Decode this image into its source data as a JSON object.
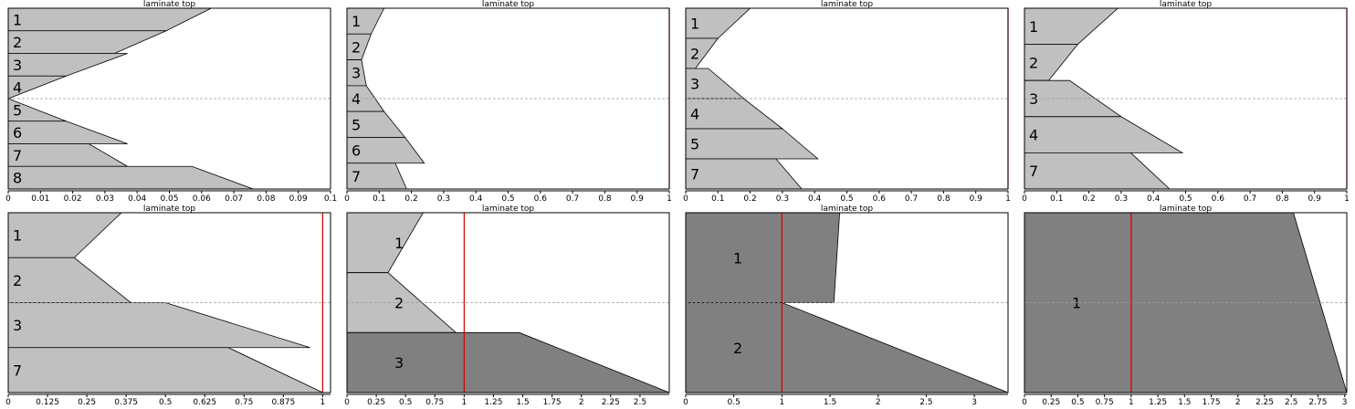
{
  "colors": {
    "ply_light": "#c0c0c0",
    "ply_dark": "#808080",
    "limit_line": "#cc0000",
    "midplane": "#9a9a9a",
    "outline": "#000000"
  },
  "chart_data": [
    {
      "type": "area",
      "title": "laminate top",
      "xlim": [
        0,
        0.1
      ],
      "xticks": [
        0,
        0.01,
        0.02,
        0.03,
        0.04,
        0.05,
        0.06,
        0.07,
        0.08,
        0.09,
        0.1
      ],
      "tick_labels": [
        "0",
        "0.01",
        "0.02",
        "0.03",
        "0.04",
        "0.05",
        "0.06",
        "0.07",
        "0.08",
        "0.09",
        "0.1"
      ],
      "limit_x": null,
      "plies": [
        {
          "label": "1",
          "shade": "light",
          "top": 0.063,
          "bottom": 0.049
        },
        {
          "label": "2",
          "shade": "light",
          "top": 0.049,
          "bottom": 0.033
        },
        {
          "label": "3",
          "shade": "light",
          "top": 0.037,
          "bottom": 0.018
        },
        {
          "label": "4",
          "shade": "light",
          "top": 0.018,
          "bottom": 0.0
        },
        {
          "label": "5",
          "shade": "light",
          "top": 0.0,
          "bottom": 0.018
        },
        {
          "label": "6",
          "shade": "light",
          "top": 0.018,
          "bottom": 0.037
        },
        {
          "label": "7",
          "shade": "light",
          "top": 0.025,
          "bottom": 0.037
        },
        {
          "label": "8",
          "shade": "light",
          "top": 0.057,
          "bottom": 0.076
        }
      ]
    },
    {
      "type": "area",
      "title": "laminate top",
      "xlim": [
        0,
        1
      ],
      "xticks": [
        0,
        0.1,
        0.2,
        0.3,
        0.4,
        0.5,
        0.6,
        0.7,
        0.8,
        0.9,
        1
      ],
      "tick_labels": [
        "0",
        "0.1",
        "0.2",
        "0.3",
        "0.4",
        "0.5",
        "0.6",
        "0.7",
        "0.8",
        "0.9",
        "1"
      ],
      "limit_x": 1,
      "plies": [
        {
          "label": "1",
          "shade": "light",
          "top": 0.115,
          "bottom": 0.075
        },
        {
          "label": "2",
          "shade": "light",
          "top": 0.075,
          "bottom": 0.045
        },
        {
          "label": "3",
          "shade": "light",
          "top": 0.045,
          "bottom": 0.06
        },
        {
          "label": "4",
          "shade": "light",
          "top": 0.06,
          "bottom": 0.115
        },
        {
          "label": "5",
          "shade": "light",
          "top": 0.115,
          "bottom": 0.18
        },
        {
          "label": "6",
          "shade": "light",
          "top": 0.18,
          "bottom": 0.24
        },
        {
          "label": "7",
          "shade": "light",
          "top": 0.15,
          "bottom": 0.185
        }
      ]
    },
    {
      "type": "area",
      "title": "laminate top",
      "xlim": [
        0,
        1
      ],
      "xticks": [
        0,
        0.1,
        0.2,
        0.3,
        0.4,
        0.5,
        0.6,
        0.7,
        0.8,
        0.9,
        1
      ],
      "tick_labels": [
        "0",
        "0.1",
        "0.2",
        "0.3",
        "0.4",
        "0.5",
        "0.6",
        "0.7",
        "0.8",
        "0.9",
        "1"
      ],
      "limit_x": 1,
      "plies": [
        {
          "label": "1",
          "shade": "light",
          "top": 0.2,
          "bottom": 0.1
        },
        {
          "label": "2",
          "shade": "light",
          "top": 0.1,
          "bottom": 0.03
        },
        {
          "label": "3",
          "shade": "light",
          "top": 0.07,
          "bottom": 0.18
        },
        {
          "label": "4",
          "shade": "light",
          "top": 0.18,
          "bottom": 0.3
        },
        {
          "label": "5",
          "shade": "light",
          "top": 0.3,
          "bottom": 0.41
        },
        {
          "label": "7",
          "shade": "light",
          "top": 0.28,
          "bottom": 0.36
        }
      ]
    },
    {
      "type": "area",
      "title": "laminate top",
      "xlim": [
        0,
        1
      ],
      "xticks": [
        0,
        0.1,
        0.2,
        0.3,
        0.4,
        0.5,
        0.6,
        0.7,
        0.8,
        0.9,
        1
      ],
      "tick_labels": [
        "0",
        "0.1",
        "0.2",
        "0.3",
        "0.4",
        "0.5",
        "0.6",
        "0.7",
        "0.8",
        "0.9",
        "1"
      ],
      "limit_x": 1,
      "plies": [
        {
          "label": "1",
          "shade": "light",
          "top": 0.29,
          "bottom": 0.165
        },
        {
          "label": "2",
          "shade": "light",
          "top": 0.165,
          "bottom": 0.075
        },
        {
          "label": "3",
          "shade": "light",
          "top": 0.14,
          "bottom": 0.3
        },
        {
          "label": "4",
          "shade": "light",
          "top": 0.3,
          "bottom": 0.49
        },
        {
          "label": "7",
          "shade": "light",
          "top": 0.33,
          "bottom": 0.45
        }
      ]
    },
    {
      "type": "area",
      "title": "laminate top",
      "xlim": [
        0,
        1.025
      ],
      "xticks": [
        0,
        0.125,
        0.25,
        0.375,
        0.5,
        0.625,
        0.75,
        0.875,
        1
      ],
      "tick_labels": [
        "0",
        "0.125",
        "0.25",
        "0.375",
        "0.5",
        "0.625",
        "0.75",
        "0.875",
        "1"
      ],
      "limit_x": 1,
      "plies": [
        {
          "label": "1",
          "shade": "light",
          "top": 0.36,
          "bottom": 0.21
        },
        {
          "label": "2",
          "shade": "light",
          "top": 0.21,
          "bottom": 0.39
        },
        {
          "label": "3",
          "shade": "light",
          "top": 0.5,
          "bottom": 0.96
        },
        {
          "label": "7",
          "shade": "light",
          "top": 0.7,
          "bottom": 1.0
        }
      ]
    },
    {
      "type": "area",
      "title": "laminate top",
      "xlim": [
        0,
        2.75
      ],
      "xticks": [
        0,
        0.25,
        0.5,
        0.75,
        1,
        1.25,
        1.5,
        1.75,
        2,
        2.25,
        2.5
      ],
      "tick_labels": [
        "0",
        "0.25",
        "0.5",
        "0.75",
        "1",
        "1.25",
        "1.5",
        "1.75",
        "2",
        "2.25",
        "2.5"
      ],
      "limit_x": 1,
      "plies": [
        {
          "label": "1",
          "shade": "light",
          "top": 0.65,
          "bottom": 0.35
        },
        {
          "label": "2",
          "shade": "light",
          "top": 0.35,
          "bottom": 0.93
        },
        {
          "label": "3",
          "shade": "dark",
          "top": 1.47,
          "bottom": 2.75
        }
      ]
    },
    {
      "type": "area",
      "title": "laminate top",
      "xlim": [
        0,
        3.35
      ],
      "xticks": [
        0,
        0.5,
        1,
        1.5,
        2,
        2.5,
        3
      ],
      "tick_labels": [
        "0",
        "0.5",
        "1",
        "1.5",
        "2",
        "2.5",
        "3"
      ],
      "limit_x": 1,
      "plies": [
        {
          "label": "1",
          "shade": "dark",
          "top": 1.6,
          "bottom": 1.54
        },
        {
          "label": "2",
          "shade": "dark",
          "top": 1.0,
          "bottom": 3.35
        }
      ]
    },
    {
      "type": "area",
      "title": "laminate top",
      "xlim": [
        0,
        3.02
      ],
      "xticks": [
        0,
        0.25,
        0.5,
        0.75,
        1,
        1.25,
        1.5,
        1.75,
        2,
        2.25,
        2.5,
        2.75,
        3
      ],
      "tick_labels": [
        "0",
        "0.25",
        "0.5",
        "0.75",
        "1",
        "1.25",
        "1.5",
        "1.75",
        "2",
        "2.25",
        "2.5",
        "2.75",
        "3"
      ],
      "limit_x": 1,
      "plies": [
        {
          "label": "1",
          "shade": "dark",
          "top": 2.52,
          "bottom": 3.02
        }
      ]
    }
  ]
}
